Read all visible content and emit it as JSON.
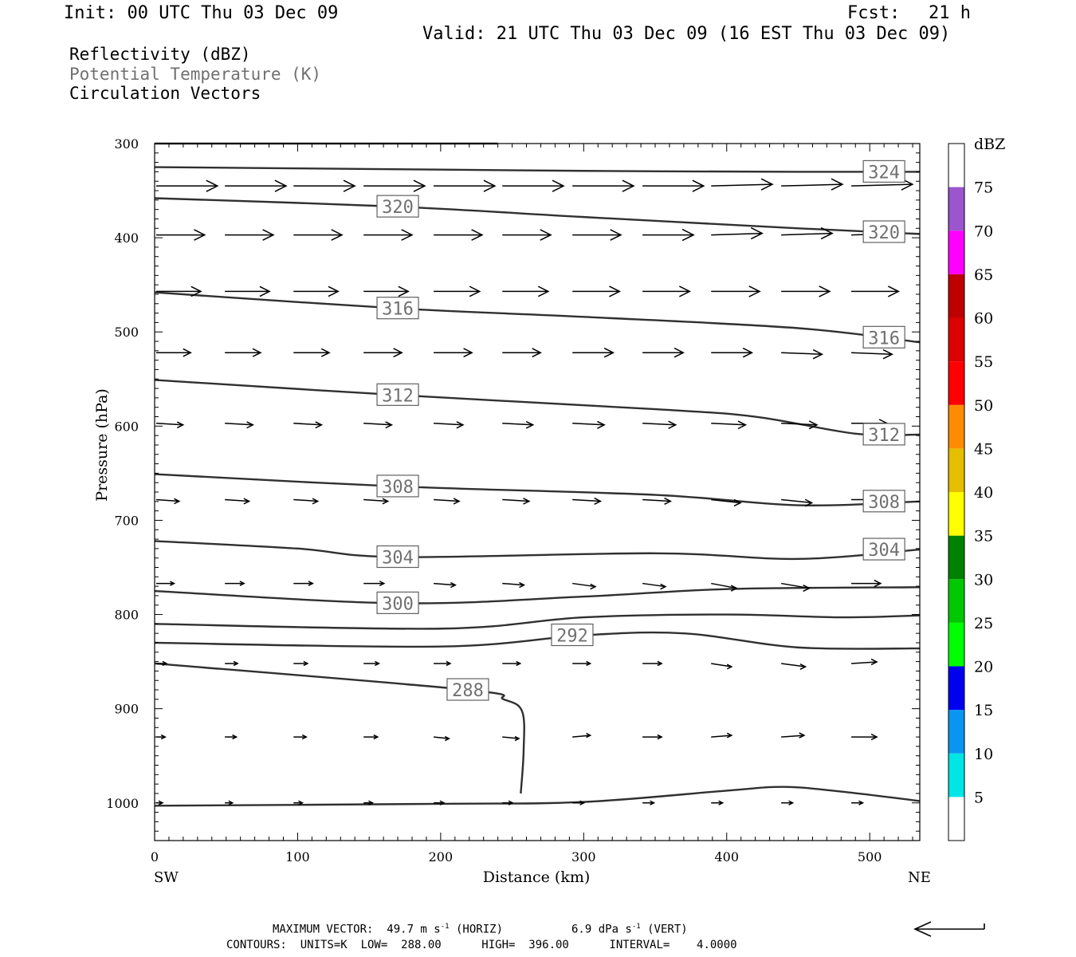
{
  "header": {
    "init": "Init: 00 UTC Thu 03 Dec 09",
    "fcst_label": "Fcst:",
    "fcst_value": "21 h",
    "valid": "Valid: 21 UTC Thu 03 Dec 09 (16 EST Thu 03 Dec 09)"
  },
  "fields": {
    "reflectivity": "Reflectivity (dBZ)",
    "theta": "Potential Temperature (K)",
    "vectors": "Circulation Vectors"
  },
  "footer": {
    "max_vector_prefix": "MAXIMUM VECTOR:  49.7 m s",
    "horiz_unit_suffix": " (HORIZ)",
    "vert_prefix": "6.9 dPa s",
    "vert_unit_suffix": " (VERT)",
    "exponent": "-1",
    "contours": "CONTOURS:  UNITS=K  LOW=  288.00      HIGH=  396.00      INTERVAL=    4.0000"
  },
  "chart_data": {
    "type": "line",
    "title": "",
    "xlabel": "Distance (km)",
    "ylabel": "Pressure (hPa)",
    "xlim": [
      0,
      535
    ],
    "ylim": [
      1040,
      300
    ],
    "x_ticks": [
      0,
      100,
      200,
      300,
      400,
      500
    ],
    "y_ticks": [
      300,
      400,
      500,
      600,
      700,
      800,
      900,
      1000
    ],
    "x_left_label": "SW",
    "x_right_label": "NE",
    "line_color": "#303030",
    "series": [
      {
        "name": "324",
        "labels": [
          {
            "x": 510,
            "y": 330
          }
        ],
        "points": [
          [
            0,
            325
          ],
          [
            150,
            327
          ],
          [
            300,
            329
          ],
          [
            450,
            330
          ],
          [
            535,
            330
          ]
        ]
      },
      {
        "name": "320",
        "labels": [
          {
            "x": 170,
            "y": 367
          },
          {
            "x": 510,
            "y": 394
          }
        ],
        "points": [
          [
            0,
            358
          ],
          [
            170,
            367
          ],
          [
            300,
            378
          ],
          [
            450,
            390
          ],
          [
            535,
            396
          ]
        ]
      },
      {
        "name": "316",
        "labels": [
          {
            "x": 170,
            "y": 475
          },
          {
            "x": 510,
            "y": 506
          }
        ],
        "points": [
          [
            0,
            458
          ],
          [
            170,
            475
          ],
          [
            300,
            484
          ],
          [
            450,
            496
          ],
          [
            535,
            511
          ]
        ]
      },
      {
        "name": "312",
        "labels": [
          {
            "x": 170,
            "y": 567
          },
          {
            "x": 510,
            "y": 609
          }
        ],
        "points": [
          [
            0,
            551
          ],
          [
            170,
            567
          ],
          [
            350,
            582
          ],
          [
            420,
            590
          ],
          [
            490,
            608
          ],
          [
            535,
            609
          ]
        ]
      },
      {
        "name": "308",
        "labels": [
          {
            "x": 170,
            "y": 664
          },
          {
            "x": 510,
            "y": 680
          }
        ],
        "points": [
          [
            0,
            651
          ],
          [
            170,
            664
          ],
          [
            350,
            673
          ],
          [
            450,
            684
          ],
          [
            535,
            680
          ]
        ]
      },
      {
        "name": "304",
        "labels": [
          {
            "x": 170,
            "y": 739
          },
          {
            "x": 510,
            "y": 731
          }
        ],
        "points": [
          [
            0,
            722
          ],
          [
            100,
            730
          ],
          [
            170,
            739
          ],
          [
            350,
            735
          ],
          [
            450,
            741
          ],
          [
            535,
            731
          ]
        ]
      },
      {
        "name": "300",
        "labels": [
          {
            "x": 170,
            "y": 788
          }
        ],
        "points": [
          [
            0,
            775
          ],
          [
            170,
            788
          ],
          [
            300,
            781
          ],
          [
            400,
            773
          ],
          [
            535,
            771
          ]
        ]
      },
      {
        "name": "296",
        "labels": [],
        "points": [
          [
            0,
            810
          ],
          [
            200,
            815
          ],
          [
            300,
            803
          ],
          [
            400,
            800
          ],
          [
            480,
            803
          ],
          [
            535,
            801
          ]
        ]
      },
      {
        "name": "292",
        "labels": [
          {
            "x": 292,
            "y": 822
          }
        ],
        "points": [
          [
            0,
            830
          ],
          [
            200,
            834
          ],
          [
            300,
            822
          ],
          [
            370,
            820
          ],
          [
            450,
            835
          ],
          [
            535,
            836
          ]
        ]
      },
      {
        "name": "288",
        "labels": [
          {
            "x": 219,
            "y": 880
          }
        ],
        "points": [
          [
            0,
            852
          ],
          [
            219,
            880
          ],
          [
            244,
            890
          ],
          [
            257,
            903
          ],
          [
            258,
            945
          ],
          [
            256,
            990
          ]
        ]
      },
      {
        "name": "sfc",
        "labels": [],
        "points": [
          [
            0,
            1003
          ],
          [
            200,
            1001
          ],
          [
            300,
            999
          ],
          [
            400,
            987
          ],
          [
            440,
            983
          ],
          [
            480,
            988
          ],
          [
            535,
            998
          ]
        ]
      }
    ],
    "vector_columns_x": [
      0,
      48,
      96,
      145,
      194,
      242,
      291,
      340,
      388,
      437,
      486
    ],
    "vectors": [
      {
        "p": 345,
        "len": [
          48,
          48,
          48,
          48,
          48,
          48,
          48,
          48,
          48,
          48,
          48
        ]
      },
      {
        "p": 397,
        "len": [
          38,
          38,
          38,
          38,
          38,
          38,
          38,
          40,
          40,
          40,
          40
        ]
      },
      {
        "p": 457,
        "len": [
          35,
          35,
          35,
          35,
          36,
          36,
          37,
          37,
          38,
          38,
          37
        ]
      },
      {
        "p": 522,
        "len": [
          27,
          28,
          28,
          30,
          30,
          30,
          32,
          32,
          32,
          32,
          32
        ]
      },
      {
        "p": 597,
        "len": [
          21,
          22,
          22,
          22,
          23,
          24,
          25,
          26,
          27,
          28,
          28
        ]
      },
      {
        "p": 678,
        "len": [
          18,
          19,
          19,
          19,
          20,
          21,
          22,
          22,
          23,
          24,
          24
        ]
      },
      {
        "p": 767,
        "len": [
          14,
          15,
          15,
          16,
          17,
          17,
          18,
          18,
          20,
          22,
          23
        ]
      },
      {
        "p": 852,
        "len": [
          8,
          10,
          11,
          12,
          13,
          14,
          14,
          15,
          16,
          19,
          20
        ]
      },
      {
        "p": 930,
        "len": [
          7,
          9,
          10,
          11,
          12,
          13,
          14,
          15,
          16,
          18,
          20
        ]
      },
      {
        "p": 1000,
        "len": [
          5,
          6,
          7,
          7,
          8,
          8,
          9,
          9,
          9,
          9,
          9
        ]
      }
    ],
    "vector_slant": [
      [
        0,
        0,
        0,
        0,
        0,
        0,
        0,
        0,
        -1,
        -1,
        -1
      ],
      [
        0,
        0,
        0,
        0,
        0,
        0,
        0,
        0,
        -1,
        -1,
        -1
      ],
      [
        0,
        0,
        0,
        0,
        0,
        0,
        0,
        0,
        0,
        0,
        0
      ],
      [
        0,
        0,
        0,
        0,
        0,
        0,
        0,
        0,
        0,
        1,
        1
      ],
      [
        1,
        1,
        1,
        1,
        1,
        1,
        1,
        1,
        1,
        1,
        0
      ],
      [
        1,
        1,
        1,
        1,
        1,
        1,
        1,
        1,
        2,
        2,
        0
      ],
      [
        0,
        0,
        0,
        0,
        1,
        1,
        2,
        2,
        3,
        3,
        0
      ],
      [
        0,
        0,
        0,
        0,
        0,
        0,
        0,
        0,
        2,
        2,
        -1
      ],
      [
        0,
        0,
        0,
        0,
        1,
        1,
        -1,
        0,
        -1,
        -1,
        0
      ],
      [
        0,
        0,
        0,
        0,
        0,
        0,
        0,
        0,
        0,
        0,
        0
      ]
    ],
    "legend": {
      "label": "dBZ",
      "ticks": [
        5,
        10,
        15,
        20,
        25,
        30,
        35,
        40,
        45,
        50,
        55,
        60,
        65,
        70,
        75
      ],
      "bands": [
        {
          "from": 5,
          "to": 10,
          "color": "#00e6e6"
        },
        {
          "from": 10,
          "to": 15,
          "color": "#0a96f0"
        },
        {
          "from": 15,
          "to": 20,
          "color": "#0000f0"
        },
        {
          "from": 20,
          "to": 25,
          "color": "#00ff00"
        },
        {
          "from": 25,
          "to": 30,
          "color": "#00c800"
        },
        {
          "from": 30,
          "to": 35,
          "color": "#008200"
        },
        {
          "from": 35,
          "to": 40,
          "color": "#ffff00"
        },
        {
          "from": 40,
          "to": 45,
          "color": "#e6be00"
        },
        {
          "from": 45,
          "to": 50,
          "color": "#ff8c00"
        },
        {
          "from": 50,
          "to": 55,
          "color": "#ff0000"
        },
        {
          "from": 55,
          "to": 60,
          "color": "#dc0000"
        },
        {
          "from": 60,
          "to": 65,
          "color": "#be0000"
        },
        {
          "from": 65,
          "to": 70,
          "color": "#ff00ff"
        },
        {
          "from": 70,
          "to": 75,
          "color": "#9b55cd"
        }
      ]
    }
  }
}
